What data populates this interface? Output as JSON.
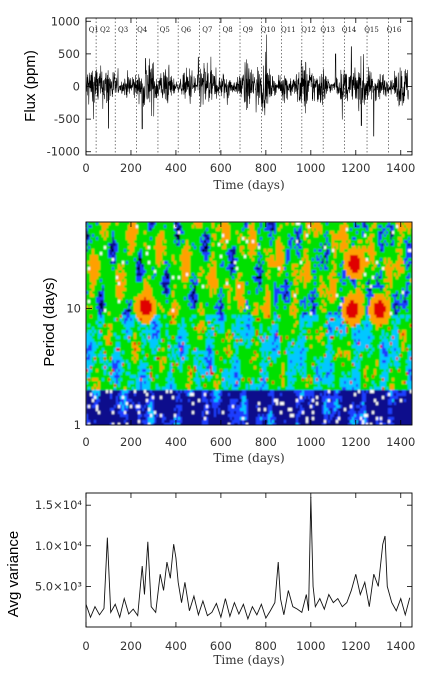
{
  "chart_data": [
    {
      "type": "line",
      "ylabel": "Flux (ppm)",
      "xlabel": "Time (days)",
      "xlim": [
        0,
        1450
      ],
      "ylim": [
        -1050,
        1050
      ],
      "x_ticks": [
        0,
        200,
        400,
        600,
        800,
        1000,
        1200,
        1400
      ],
      "y_ticks": [
        -1000,
        -500,
        0,
        500,
        1000
      ],
      "grid": false,
      "quarters": [
        {
          "label": "Q1",
          "x": 35
        },
        {
          "label": "Q2",
          "x": 85
        },
        {
          "label": "Q3",
          "x": 165
        },
        {
          "label": "Q4",
          "x": 250
        },
        {
          "label": "Q5",
          "x": 350
        },
        {
          "label": "Q6",
          "x": 445
        },
        {
          "label": "Q7",
          "x": 540
        },
        {
          "label": "Q8",
          "x": 630
        },
        {
          "label": "Q9",
          "x": 720
        },
        {
          "label": "Q10",
          "x": 810
        },
        {
          "label": "Q11",
          "x": 900
        },
        {
          "label": "Q12",
          "x": 990
        },
        {
          "label": "Q13",
          "x": 1075
        },
        {
          "label": "Q14",
          "x": 1170
        },
        {
          "label": "Q15",
          "x": 1270
        },
        {
          "label": "Q16",
          "x": 1370
        }
      ],
      "quarter_boundaries": [
        45,
        130,
        225,
        320,
        410,
        505,
        595,
        685,
        780,
        870,
        960,
        1055,
        1150,
        1250,
        1345
      ],
      "noise_peaks": [
        {
          "x": 100,
          "y": -640
        },
        {
          "x": 250,
          "y": -650
        },
        {
          "x": 265,
          "y": 430
        },
        {
          "x": 500,
          "y": 450
        },
        {
          "x": 1110,
          "y": 500
        },
        {
          "x": 1180,
          "y": 610
        },
        {
          "x": 1225,
          "y": -600
        },
        {
          "x": 1280,
          "y": -760
        }
      ]
    },
    {
      "type": "heatmap",
      "ylabel": "Period (days)",
      "xlabel": "Time (days)",
      "xlim": [
        0,
        1450
      ],
      "ylim": [
        1,
        55
      ],
      "yscale": "log",
      "x_ticks": [
        0,
        200,
        400,
        600,
        800,
        1000,
        1200,
        1400
      ],
      "y_ticks": [
        1,
        10
      ],
      "colormap": [
        "#ffffff",
        "#000000",
        "#0a0a8c",
        "#1e3cff",
        "#00c8ff",
        "#00e000",
        "#ffa000",
        "#e00000"
      ],
      "hotspots": [
        {
          "x": 260,
          "period": 10.5
        },
        {
          "x": 1180,
          "period": 10
        },
        {
          "x": 1190,
          "period": 25
        },
        {
          "x": 1300,
          "period": 10
        }
      ]
    },
    {
      "type": "line",
      "ylabel": "Avg variance",
      "xlabel": "Time (days)",
      "xlim": [
        0,
        1450
      ],
      "ylim": [
        0,
        16500
      ],
      "x_ticks": [
        0,
        200,
        400,
        600,
        800,
        1000,
        1200,
        1400
      ],
      "y_ticks": [
        5000,
        10000,
        15000
      ],
      "y_tick_labels": [
        "5.0×10³",
        "1.0×10⁴",
        "1.5×10⁴"
      ],
      "grid": false,
      "x": [
        0,
        20,
        40,
        60,
        80,
        95,
        110,
        130,
        150,
        170,
        190,
        210,
        230,
        250,
        260,
        275,
        290,
        310,
        330,
        345,
        360,
        375,
        390,
        400,
        410,
        425,
        440,
        460,
        480,
        500,
        520,
        540,
        560,
        580,
        600,
        620,
        640,
        660,
        680,
        700,
        720,
        740,
        760,
        780,
        800,
        820,
        840,
        855,
        865,
        880,
        900,
        920,
        940,
        960,
        980,
        990,
        1000,
        1010,
        1020,
        1040,
        1060,
        1080,
        1100,
        1120,
        1140,
        1160,
        1180,
        1200,
        1220,
        1240,
        1260,
        1280,
        1300,
        1320,
        1330,
        1340,
        1360,
        1380,
        1400,
        1420,
        1440
      ],
      "values": [
        2800,
        1200,
        2500,
        1500,
        2300,
        11000,
        1800,
        2800,
        1200,
        3500,
        1600,
        2200,
        1400,
        7500,
        4000,
        10500,
        2500,
        1800,
        6500,
        4500,
        8000,
        6000,
        10200,
        8500,
        5500,
        3000,
        5500,
        2000,
        3800,
        1500,
        3200,
        1400,
        1800,
        2900,
        1200,
        3500,
        1300,
        3000,
        1600,
        2800,
        1000,
        2500,
        1500,
        2800,
        1100,
        2000,
        3000,
        8000,
        3500,
        1500,
        4500,
        2500,
        2200,
        1800,
        4000,
        2000,
        16000,
        5000,
        2500,
        3500,
        2200,
        4000,
        3000,
        3500,
        2500,
        3000,
        4500,
        6500,
        4000,
        5500,
        2500,
        6500,
        5000,
        10200,
        11200,
        5000,
        3000,
        2000,
        3500,
        1500,
        3600
      ]
    }
  ]
}
